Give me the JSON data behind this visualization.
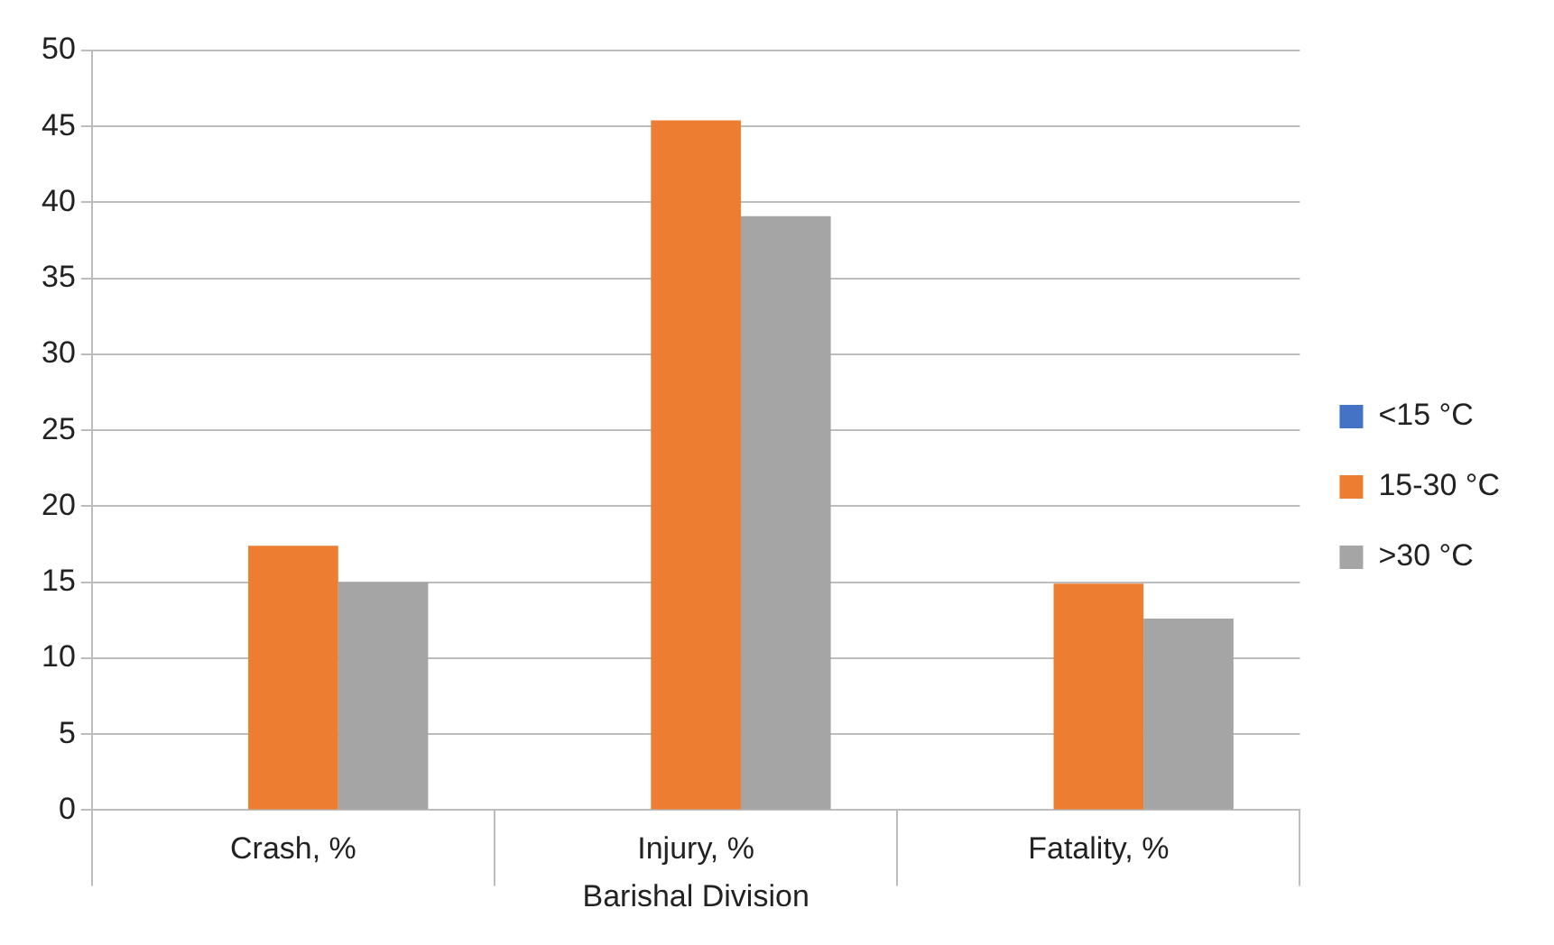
{
  "chart_data": {
    "type": "bar",
    "xlabel": "Barishal Division",
    "categories": [
      "Crash, %",
      "Injury, %",
      "Fatality, %"
    ],
    "series": [
      {
        "name": "<15 °C",
        "color": "#4472c4",
        "values": [
          0,
          0,
          0
        ]
      },
      {
        "name": "15-30 °C",
        "color": "#ed7d31",
        "values": [
          17.4,
          45.4,
          14.9
        ]
      },
      {
        "name": ">30 °C",
        "color": "#a5a5a5",
        "values": [
          15.0,
          39.1,
          12.6
        ]
      }
    ],
    "ylim": [
      0,
      50
    ],
    "yticks": [
      0,
      5,
      10,
      15,
      20,
      25,
      30,
      35,
      40,
      45,
      50
    ],
    "grid": "y",
    "legend": "right"
  }
}
